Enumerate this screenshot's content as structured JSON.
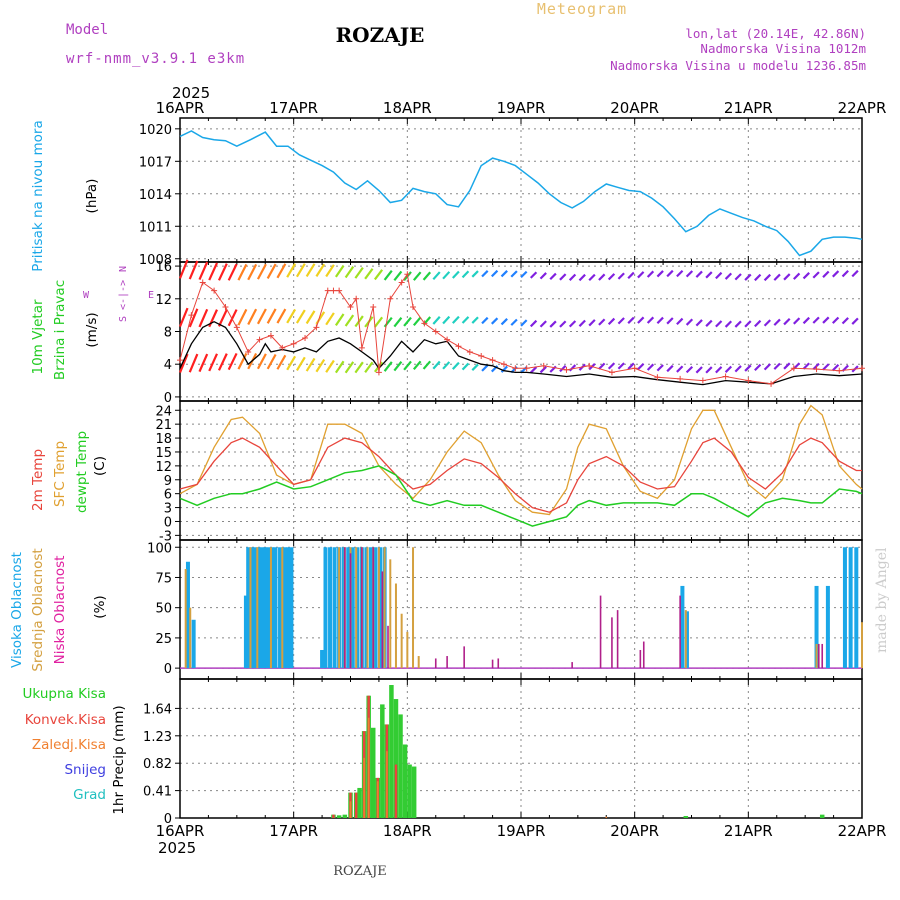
{
  "header": {
    "model_label": "Model",
    "model_name": "wrf-nmm_v3.9.1 e3km",
    "station": "ROZAJE",
    "product": "Meteogram",
    "coords": "lon,lat (20.14E, 42.86N)",
    "elevation": "Nadmorska Visina 1012m",
    "model_elevation": "Nadmorska Visina u modelu 1236.85m",
    "year_top": "2025",
    "year_bottom": "2025",
    "footer_station": "ROZAJE",
    "credit": "made by Angel"
  },
  "colors": {
    "pressure": "#1aa7e8",
    "wind_speed": "#000000",
    "gust": "#e8453c",
    "t2m": "#e8453c",
    "sfc": "#e0a030",
    "dewpt": "#22cc22",
    "high_cloud": "#1aa7e8",
    "mid_cloud": "#d4a040",
    "low_cloud": "#b0208a",
    "total_precip": "#33cc33",
    "conv_precip": "#e8453c",
    "frozen_precip": "#f08030",
    "snow": "#4040e0",
    "hail": "#20c0c0",
    "model_label": "#b040c0",
    "product": "#e8c070"
  },
  "chart_data": [
    {
      "type": "line",
      "panel": "pressure",
      "title": "Pritisak na nivou mora",
      "ylabel": "(hPa)",
      "x_days": [
        "16APR",
        "17APR",
        "18APR",
        "19APR",
        "20APR",
        "21APR",
        "22APR"
      ],
      "yticks": [
        "1020",
        "1017",
        "1014",
        "1011",
        "1008"
      ],
      "ylim": [
        1007.7,
        1021
      ],
      "series": [
        {
          "name": "MSLP",
          "x": [
            0,
            0.1,
            0.2,
            0.3,
            0.4,
            0.5,
            0.62,
            0.75,
            0.85,
            0.95,
            1.05,
            1.15,
            1.25,
            1.35,
            1.45,
            1.55,
            1.65,
            1.75,
            1.85,
            1.95,
            2.05,
            2.15,
            2.25,
            2.35,
            2.45,
            2.55,
            2.65,
            2.75,
            2.85,
            2.95,
            3.05,
            3.15,
            3.25,
            3.35,
            3.45,
            3.55,
            3.65,
            3.75,
            3.85,
            3.95,
            4.05,
            4.15,
            4.25,
            4.35,
            4.45,
            4.55,
            4.65,
            4.75,
            4.85,
            4.95,
            5.05,
            5.15,
            5.25,
            5.35,
            5.45,
            5.55,
            5.65,
            5.75,
            5.85,
            5.95,
            6
          ],
          "values": [
            1019.3,
            1019.8,
            1019.2,
            1019.0,
            1018.9,
            1018.4,
            1019.0,
            1019.7,
            1018.4,
            1018.4,
            1017.6,
            1017.1,
            1016.6,
            1016.0,
            1015.0,
            1014.4,
            1015.2,
            1014.3,
            1013.2,
            1013.4,
            1014.5,
            1014.2,
            1014.0,
            1013.0,
            1012.8,
            1014.3,
            1016.6,
            1017.3,
            1017.0,
            1016.6,
            1015.8,
            1015.0,
            1014.0,
            1013.2,
            1012.7,
            1013.3,
            1014.2,
            1014.9,
            1014.6,
            1014.3,
            1014.2,
            1013.6,
            1012.8,
            1011.7,
            1010.5,
            1011.0,
            1012.0,
            1012.6,
            1012.2,
            1011.8,
            1011.5,
            1011.0,
            1010.6,
            1009.6,
            1008.3,
            1008.7,
            1009.8,
            1010.0,
            1010.0,
            1009.9,
            1009.8
          ]
        }
      ]
    },
    {
      "type": "line",
      "panel": "wind",
      "title": "10m Vjetar",
      "title2": "Brzina i Pravac",
      "ylabel": "(m/s)",
      "compass": {
        "n": "N",
        "s": "S",
        "w": "W",
        "e": "E"
      },
      "yticks": [
        "16",
        "12",
        "8",
        "4",
        "0"
      ],
      "ylim": [
        -0.5,
        16.5
      ],
      "series": [
        {
          "name": "wind speed",
          "x": [
            0,
            0.1,
            0.2,
            0.3,
            0.4,
            0.5,
            0.6,
            0.7,
            0.75,
            0.8,
            0.9,
            1.0,
            1.1,
            1.2,
            1.3,
            1.4,
            1.5,
            1.6,
            1.7,
            1.75,
            1.85,
            1.95,
            2.05,
            2.15,
            2.25,
            2.35,
            2.45,
            2.55,
            2.65,
            2.75,
            2.85,
            2.95,
            3.05,
            3.2,
            3.4,
            3.6,
            3.8,
            4.0,
            4.2,
            4.4,
            4.6,
            4.8,
            5.0,
            5.2,
            5.4,
            5.6,
            5.8,
            6
          ],
          "values": [
            3.5,
            6.5,
            8.5,
            9.2,
            8.5,
            6.5,
            4.0,
            5.2,
            6.5,
            5.5,
            5.8,
            5.5,
            6.0,
            5.5,
            6.8,
            7.2,
            6.5,
            5.5,
            4.5,
            3.5,
            5.0,
            6.8,
            5.5,
            7.0,
            6.5,
            6.8,
            5.0,
            4.5,
            4.0,
            3.8,
            3.2,
            3.0,
            3.0,
            2.8,
            2.5,
            2.8,
            2.4,
            2.5,
            2.1,
            1.8,
            1.5,
            2.0,
            1.8,
            1.6,
            2.5,
            2.8,
            2.6,
            2.8
          ]
        },
        {
          "name": "gust",
          "x": [
            0,
            0.1,
            0.2,
            0.3,
            0.4,
            0.5,
            0.6,
            0.7,
            0.8,
            0.9,
            1.0,
            1.1,
            1.2,
            1.3,
            1.35,
            1.4,
            1.5,
            1.55,
            1.6,
            1.7,
            1.75,
            1.85,
            1.95,
            2.0,
            2.05,
            2.15,
            2.25,
            2.35,
            2.45,
            2.55,
            2.65,
            2.75,
            2.85,
            2.95,
            3.05,
            3.2,
            3.4,
            3.6,
            3.8,
            4.0,
            4.2,
            4.4,
            4.6,
            4.8,
            5.0,
            5.2,
            5.4,
            5.6,
            5.8,
            6
          ],
          "values": [
            4.5,
            10,
            14,
            13,
            11,
            8.5,
            5.5,
            7,
            7.5,
            6,
            6.5,
            7.2,
            8.5,
            13,
            13,
            13,
            11,
            12,
            6,
            11,
            3,
            12,
            14,
            15,
            11,
            9,
            8,
            7,
            6.2,
            5.5,
            5,
            4.5,
            4,
            3.5,
            3.5,
            3.8,
            3.3,
            3.8,
            3,
            3.5,
            2.4,
            2.2,
            2,
            2.5,
            2,
            1.6,
            3.5,
            3.4,
            3.2,
            3.5
          ]
        }
      ]
    },
    {
      "type": "line",
      "panel": "temperature",
      "title": "2m Temp",
      "title2": "SFC Temp",
      "title3": "dewpt Temp",
      "ylabel": "(C)",
      "yticks": [
        "24",
        "21",
        "18",
        "15",
        "12",
        "9",
        "6",
        "3",
        "0",
        "-3"
      ],
      "ylim": [
        -4,
        26
      ],
      "series": [
        {
          "name": "2m Temp",
          "x": [
            0,
            0.15,
            0.3,
            0.45,
            0.55,
            0.7,
            0.85,
            1.0,
            1.15,
            1.3,
            1.45,
            1.6,
            1.75,
            1.9,
            2.05,
            2.2,
            2.35,
            2.5,
            2.65,
            2.8,
            2.95,
            3.1,
            3.25,
            3.4,
            3.5,
            3.6,
            3.75,
            3.9,
            4.05,
            4.2,
            4.35,
            4.5,
            4.6,
            4.7,
            4.85,
            5.0,
            5.15,
            5.3,
            5.45,
            5.55,
            5.65,
            5.8,
            5.95,
            6
          ],
          "values": [
            7,
            8,
            13,
            17,
            18,
            16,
            12,
            8,
            9,
            16,
            18,
            17,
            14,
            10,
            7,
            8,
            11,
            13.5,
            12.5,
            9.5,
            6,
            3,
            2,
            4,
            9,
            12.5,
            14,
            12,
            8.5,
            7,
            7.5,
            13,
            17,
            18,
            15,
            9.5,
            7,
            10.5,
            16.5,
            18,
            17,
            13,
            11,
            11
          ]
        },
        {
          "name": "SFC Temp",
          "x": [
            0,
            0.15,
            0.3,
            0.45,
            0.55,
            0.7,
            0.85,
            1.0,
            1.15,
            1.3,
            1.45,
            1.6,
            1.75,
            1.9,
            2.05,
            2.2,
            2.35,
            2.5,
            2.65,
            2.8,
            2.95,
            3.1,
            3.25,
            3.4,
            3.5,
            3.6,
            3.75,
            3.9,
            4.05,
            4.2,
            4.35,
            4.5,
            4.6,
            4.7,
            4.85,
            5.0,
            5.15,
            5.3,
            5.45,
            5.55,
            5.65,
            5.8,
            5.95,
            6
          ],
          "values": [
            6,
            8,
            16,
            22,
            22.5,
            19,
            10,
            8,
            9,
            21,
            21,
            19,
            12,
            8,
            5,
            9,
            15,
            19.5,
            17,
            10,
            4.5,
            2,
            1.5,
            7,
            16,
            21,
            20,
            12,
            6.5,
            5,
            9,
            20,
            24,
            24,
            16,
            8,
            5,
            9,
            21,
            25,
            23,
            12,
            8,
            7
          ]
        },
        {
          "name": "dewpt Temp",
          "x": [
            0,
            0.15,
            0.3,
            0.45,
            0.55,
            0.7,
            0.85,
            1.0,
            1.15,
            1.3,
            1.45,
            1.6,
            1.75,
            1.9,
            2.05,
            2.2,
            2.35,
            2.5,
            2.65,
            2.8,
            2.95,
            3.1,
            3.25,
            3.4,
            3.5,
            3.6,
            3.75,
            3.9,
            4.05,
            4.2,
            4.35,
            4.5,
            4.6,
            4.7,
            4.85,
            5.0,
            5.15,
            5.3,
            5.45,
            5.55,
            5.65,
            5.8,
            5.95,
            6
          ],
          "values": [
            5,
            3.5,
            5,
            6,
            6,
            7,
            8.5,
            7,
            7.5,
            9,
            10.5,
            11,
            12,
            10,
            4.5,
            3.5,
            4.5,
            3.5,
            3.5,
            2,
            0.5,
            -1,
            0,
            1,
            3.5,
            4.5,
            3.5,
            4,
            4,
            4,
            3.5,
            6,
            6,
            5,
            3,
            1,
            4,
            5,
            4.5,
            4,
            4,
            7,
            6.5,
            6
          ]
        }
      ]
    },
    {
      "type": "bar",
      "panel": "cloud",
      "title": "Visoka Oblacnost",
      "title2": "Srednja Oblacnost",
      "title3": "Niska Oblacnost",
      "ylabel": "(%)",
      "yticks": [
        "100",
        "75",
        "50",
        "25",
        "0"
      ],
      "ylim": [
        0,
        100
      ],
      "series": [
        {
          "name": "Visoka",
          "x": [
            0.07,
            0.12,
            0.58,
            0.6,
            0.63,
            0.66,
            0.69,
            0.72,
            0.75,
            0.78,
            0.81,
            0.84,
            0.88,
            0.92,
            0.95,
            0.98,
            1.25,
            1.28,
            1.32,
            1.36,
            1.4,
            1.44,
            1.48,
            1.52,
            1.56,
            1.6,
            1.64,
            1.68,
            1.72,
            1.76,
            1.8,
            4.42,
            4.46,
            5.6,
            5.7,
            5.85,
            5.9,
            5.95
          ],
          "values": [
            88,
            40,
            60,
            100,
            100,
            100,
            100,
            100,
            100,
            100,
            100,
            100,
            100,
            100,
            100,
            100,
            15,
            100,
            100,
            100,
            100,
            100,
            100,
            100,
            100,
            100,
            100,
            100,
            100,
            100,
            100,
            68,
            47,
            68,
            68,
            100,
            100,
            100
          ]
        },
        {
          "name": "Srednja",
          "x": [
            0.05,
            0.09,
            0.62,
            0.68,
            0.8,
            0.9,
            1.4,
            1.45,
            1.5,
            1.55,
            1.6,
            1.65,
            1.7,
            1.75,
            1.8,
            1.85,
            1.9,
            1.95,
            2.0,
            2.05,
            2.1,
            4.45,
            5.6,
            6.0
          ],
          "values": [
            82,
            50,
            100,
            100,
            100,
            100,
            100,
            100,
            100,
            100,
            100,
            100,
            100,
            100,
            100,
            90,
            70,
            45,
            30,
            100,
            10,
            48,
            20,
            38
          ]
        },
        {
          "name": "Niska",
          "x": [
            1.45,
            1.5,
            1.6,
            1.7,
            1.78,
            1.83,
            2.25,
            2.35,
            2.5,
            2.75,
            2.8,
            3.45,
            3.7,
            3.8,
            3.85,
            4.05,
            4.08,
            4.4,
            5.62,
            5.65
          ],
          "values": [
            100,
            95,
            100,
            100,
            80,
            35,
            8,
            10,
            18,
            7,
            8,
            5,
            60,
            42,
            48,
            15,
            22,
            60,
            20,
            20
          ]
        }
      ]
    },
    {
      "type": "bar",
      "panel": "precip",
      "title": "Ukupna Kisa",
      "title2": "Konvek.Kisa",
      "title3": "Zaledj.Kisa",
      "title4": "Snijeg",
      "title5": "Grad",
      "ylabel": "1hr Precip (mm)",
      "yticks": [
        "1.64",
        "1.23",
        "0.82",
        "0.41",
        "0"
      ],
      "ylim": [
        0,
        2.08
      ],
      "series": [
        {
          "name": "Ukupna Kisa",
          "x": [
            1.35,
            1.4,
            1.45,
            1.5,
            1.55,
            1.58,
            1.62,
            1.66,
            1.7,
            1.74,
            1.78,
            1.82,
            1.86,
            1.9,
            1.94,
            1.98,
            2.02,
            2.06,
            4.45,
            5.65
          ],
          "values": [
            0.05,
            0.04,
            0.05,
            0.38,
            0.38,
            0.45,
            1.3,
            1.83,
            1.35,
            0.6,
            1.7,
            1.4,
            1.99,
            1.78,
            1.55,
            1.1,
            0.8,
            0.77,
            0.03,
            0.05
          ]
        },
        {
          "name": "Konvek.Kisa",
          "x": [
            1.35,
            1.5,
            1.55,
            1.62,
            1.66,
            1.74,
            1.82,
            1.9
          ],
          "values": [
            0.05,
            0.38,
            0.38,
            1.3,
            1.83,
            0.6,
            1.4,
            0.8
          ]
        },
        {
          "name": "Zaledj.Kisa",
          "x": [
            1.5,
            1.62,
            1.66,
            1.74,
            1.82,
            3.75
          ],
          "values": [
            0.25,
            0.9,
            1.5,
            0.55,
            1.0,
            0.02
          ]
        }
      ]
    }
  ]
}
